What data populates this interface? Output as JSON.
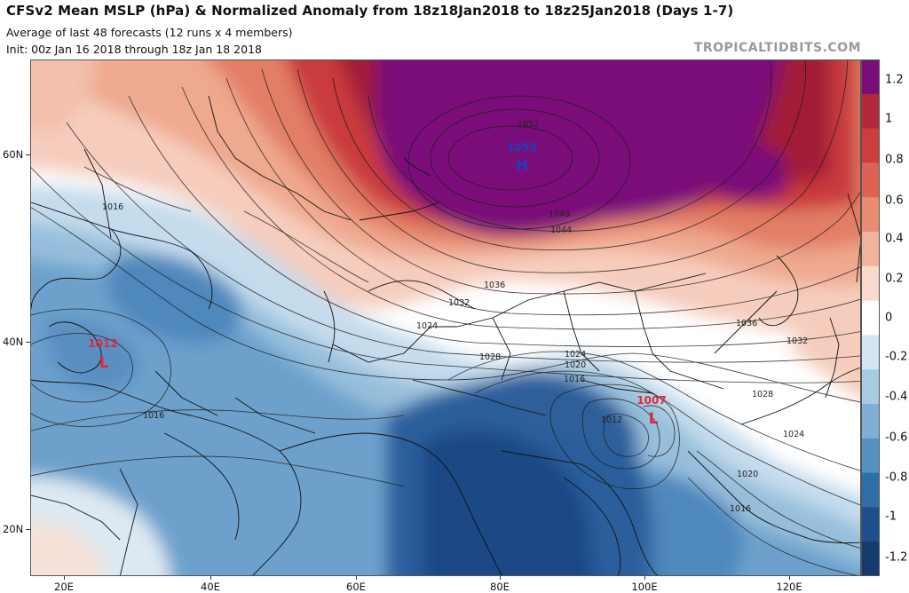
{
  "header": {
    "title": "CFSv2 Mean MSLP (hPa) & Normalized Anomaly from 18z18Jan2018 to 18z25Jan2018 (Days 1-7)",
    "subtitle": "Average of last 48 forecasts (12 runs x 4 members)",
    "init": "Init: 00z Jan 16 2018 through 18z Jan 18 2018",
    "brand": "TROPICALTIDBITS.COM"
  },
  "colorbar": {
    "labels": [
      "1.2",
      "1",
      "0.8",
      "0.6",
      "0.4",
      "0.2",
      "0",
      "-0.2",
      "-0.4",
      "-0.6",
      "-0.8",
      "-1",
      "-1.2"
    ],
    "colors": [
      "#7a0d79",
      "#b0283a",
      "#cc3e3e",
      "#dc6353",
      "#e98c74",
      "#f2b39d",
      "#f8d9ca",
      "#ffffff",
      "#d4e6f1",
      "#a9cbe2",
      "#7fb0d3",
      "#5592c0",
      "#2f6fa8",
      "#1d4f8c",
      "#153a6e"
    ]
  },
  "axes": {
    "lat_labels": [
      "60N",
      "40N",
      "20N"
    ],
    "lon_labels": [
      "20E",
      "40E",
      "60E",
      "80E",
      "100E",
      "120E"
    ]
  },
  "map": {
    "centers": [
      {
        "type": "H",
        "value": "1053",
        "color": "#1d3fbf"
      },
      {
        "type": "L",
        "value": "1012",
        "color": "#e0283c"
      },
      {
        "type": "L",
        "value": "1007",
        "color": "#e0283c"
      }
    ],
    "isobar_labels": [
      "1052",
      "1048",
      "1044",
      "1036",
      "1032",
      "1024",
      "1028",
      "1024",
      "1020",
      "1016",
      "1012",
      "1036",
      "1032",
      "1028",
      "1024",
      "1020",
      "1016",
      "1016",
      "1016"
    ]
  }
}
